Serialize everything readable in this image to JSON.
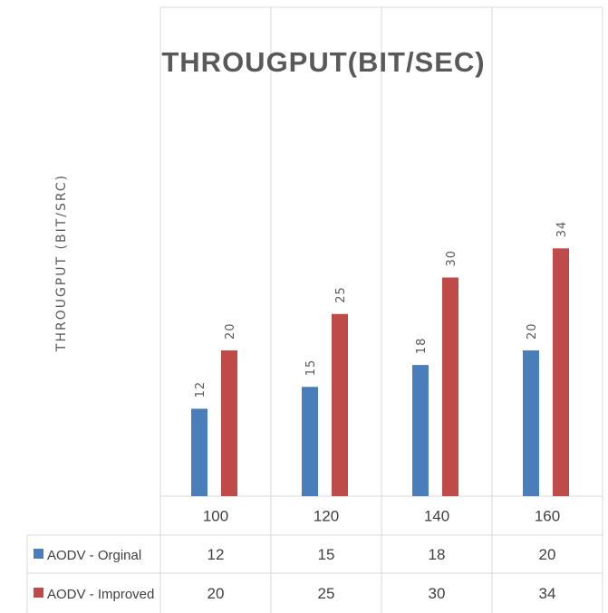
{
  "chart_data": {
    "type": "bar",
    "title": "THROUGPUT(BIT/SEC)",
    "xlabel": "",
    "ylabel": "THROUGPUT (BIT/SRC)",
    "categories": [
      "100",
      "120",
      "140",
      "160"
    ],
    "series": [
      {
        "name": "AODV - Orginal",
        "color": "#4a7ebb",
        "values": [
          12,
          15,
          18,
          20
        ]
      },
      {
        "name": "AODV - Improved",
        "color": "#be4b48",
        "values": [
          20,
          25,
          30,
          34
        ]
      }
    ],
    "ylim": [
      0,
      34
    ],
    "grid": "vertical",
    "legend": "data-table"
  }
}
